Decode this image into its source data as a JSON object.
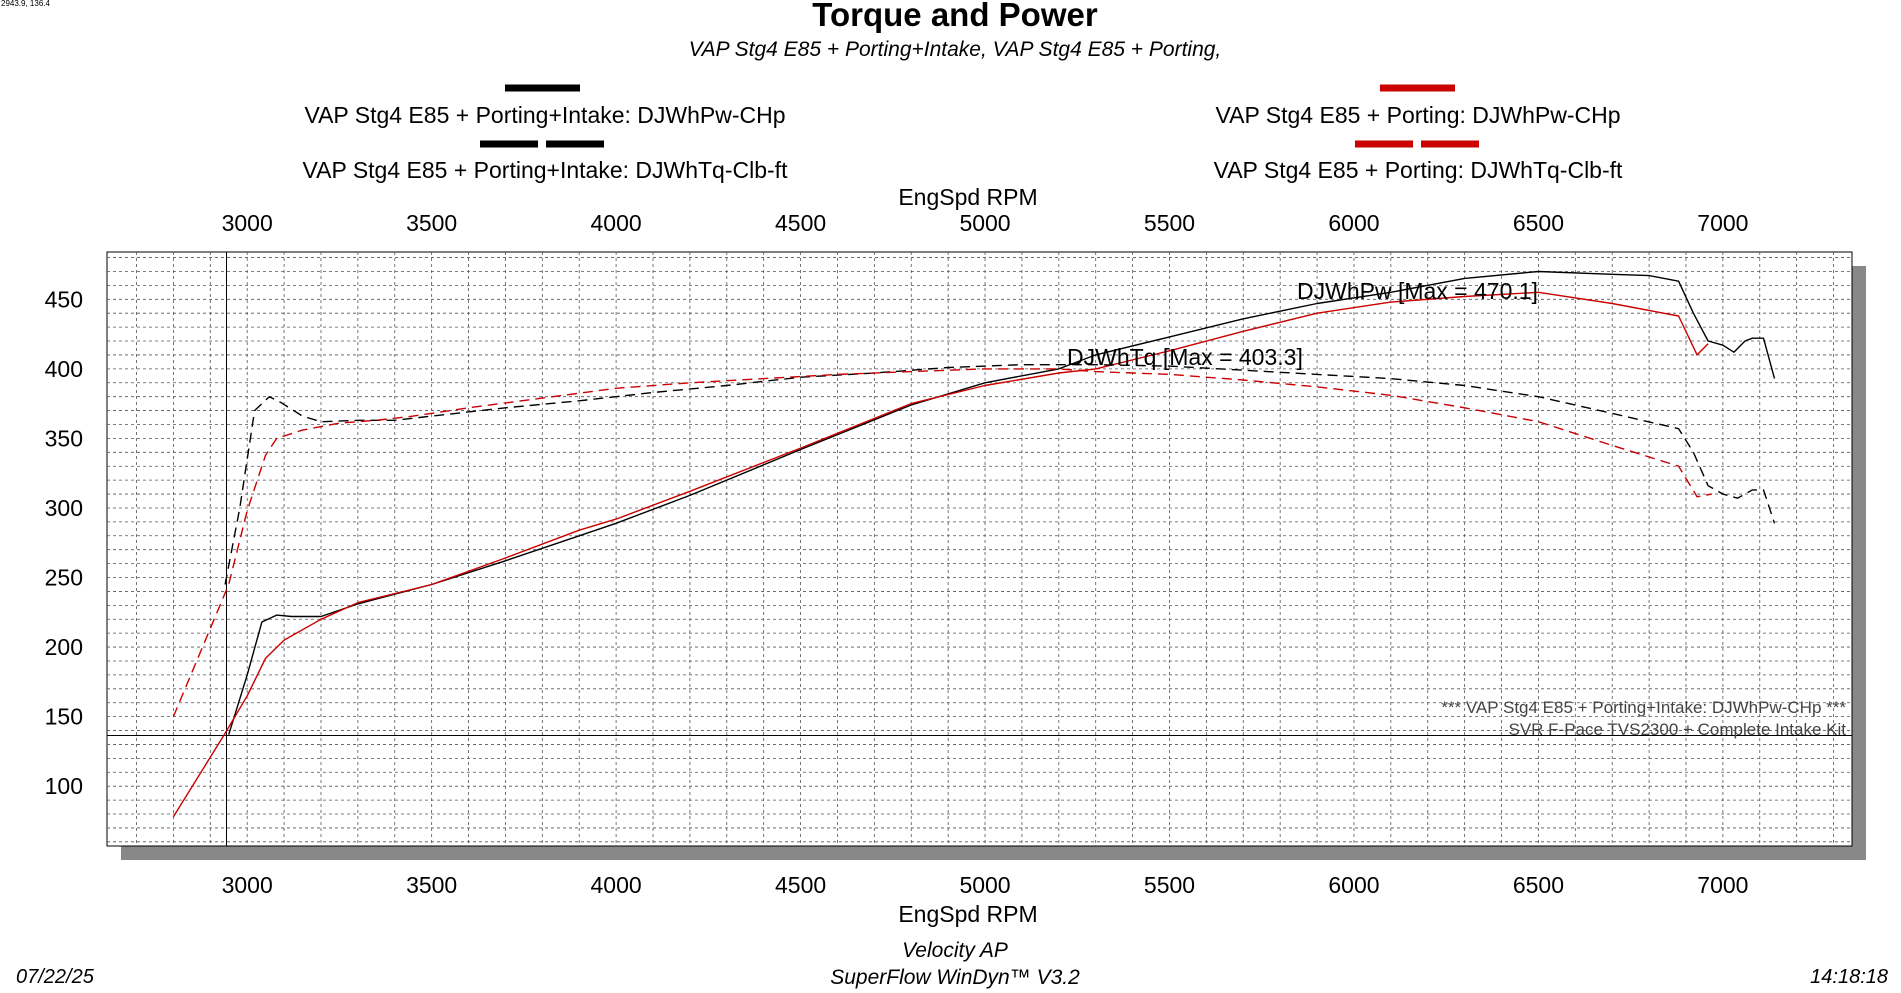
{
  "cursor_readout": "2943.9, 136.4",
  "chart_data": {
    "type": "line",
    "title": "Torque and Power",
    "subtitle": "VAP Stg4 E85 + Porting+Intake, VAP Stg4 E85 + Porting,",
    "xlabel": "EngSpd RPM",
    "ylabel": "",
    "xlim": [
      2620,
      7350
    ],
    "ylim": [
      57,
      484
    ],
    "xticks": [
      3000,
      3500,
      4000,
      4500,
      5000,
      5500,
      6000,
      6500,
      7000
    ],
    "yticks": [
      100,
      150,
      200,
      250,
      300,
      350,
      400,
      450
    ],
    "grid": true,
    "legend_placement": "top",
    "legend": [
      {
        "label": "VAP Stg4 E85 + Porting+Intake: DJWhPw-CHp",
        "color": "#000000",
        "style": "solid"
      },
      {
        "label": "VAP Stg4 E85 + Porting+Intake: DJWhTq-Clb-ft",
        "color": "#000000",
        "style": "dashed"
      },
      {
        "label": "VAP Stg4 E85 + Porting: DJWhPw-CHp",
        "color": "#cc0000",
        "style": "solid"
      },
      {
        "label": "VAP Stg4 E85 + Porting: DJWhTq-Clb-ft",
        "color": "#cc0000",
        "style": "dashed"
      }
    ],
    "annotations": {
      "power_max": "DJWhPw [Max = 470.1]",
      "torque_max": "DJWhTq [Max = 403.3]",
      "note_line1": "*** VAP Stg4 E85 + Porting+Intake: DJWhPw-CHp   ***",
      "note_line2": "SVR F-Pace TVS2300 + Complete Intake Kit"
    },
    "cursor": {
      "x": 2943.9,
      "y": 136.4
    },
    "series": [
      {
        "name": "VAP Stg4 E85 + Porting+Intake: DJWhPw-CHp",
        "color": "#000000",
        "dash": false,
        "x": [
          2950,
          3000,
          3040,
          3080,
          3120,
          3200,
          3300,
          3500,
          3700,
          3900,
          4000,
          4200,
          4500,
          4800,
          5000,
          5200,
          5300,
          5500,
          5700,
          5900,
          6100,
          6300,
          6500,
          6700,
          6800,
          6880,
          6920,
          6960,
          7000,
          7030,
          7060,
          7080,
          7110,
          7140
        ],
        "y": [
          137,
          180,
          218,
          223,
          222,
          222,
          231,
          245,
          262,
          280,
          289,
          309,
          342,
          374,
          390,
          400,
          410,
          423,
          436,
          447,
          455,
          465,
          470,
          468,
          467,
          463,
          440,
          420,
          417,
          412,
          420,
          422,
          422,
          393
        ]
      },
      {
        "name": "VAP Stg4 E85 + Porting: DJWhPw-CHp",
        "color": "#cc0000",
        "dash": false,
        "x": [
          2800,
          2940,
          3000,
          3050,
          3100,
          3200,
          3300,
          3500,
          3700,
          3900,
          4000,
          4200,
          4500,
          4800,
          5000,
          5200,
          5300,
          5500,
          5700,
          5900,
          6100,
          6300,
          6500,
          6700,
          6880,
          6930,
          6960
        ],
        "y": [
          78,
          138,
          165,
          192,
          205,
          220,
          232,
          245,
          264,
          284,
          292,
          312,
          343,
          375,
          388,
          397,
          400,
          413,
          427,
          440,
          448,
          452,
          455,
          447,
          438,
          410,
          418
        ]
      },
      {
        "name": "VAP Stg4 E85 + Porting+Intake: DJWhTq-Clb-ft",
        "color": "#000000",
        "dash": true,
        "x": [
          2940,
          2980,
          3020,
          3060,
          3090,
          3150,
          3200,
          3300,
          3400,
          3500,
          3700,
          3900,
          4100,
          4300,
          4500,
          4700,
          4900,
          5100,
          5200,
          5300,
          5500,
          5700,
          5900,
          6100,
          6300,
          6500,
          6700,
          6880,
          6920,
          6960,
          7000,
          7040,
          7080,
          7110,
          7140
        ],
        "y": [
          245,
          300,
          370,
          380,
          376,
          366,
          362,
          363,
          363,
          366,
          372,
          377,
          383,
          388,
          394,
          397,
          401,
          403,
          403,
          403,
          402,
          399,
          396,
          393,
          388,
          380,
          368,
          357,
          340,
          316,
          310,
          307,
          313,
          313,
          289
        ]
      },
      {
        "name": "VAP Stg4 E85 + Porting: DJWhTq-Clb-ft",
        "color": "#cc0000",
        "dash": true,
        "x": [
          2800,
          2950,
          3000,
          3050,
          3080,
          3150,
          3250,
          3350,
          3450,
          3600,
          3800,
          4000,
          4200,
          4400,
          4600,
          4800,
          5000,
          5200,
          5300,
          5500,
          5700,
          5900,
          6100,
          6300,
          6500,
          6700,
          6880,
          6930,
          6970
        ],
        "y": [
          150,
          245,
          298,
          338,
          350,
          356,
          361,
          363,
          366,
          372,
          379,
          386,
          390,
          393,
          396,
          398,
          400,
          400,
          398,
          396,
          392,
          387,
          381,
          372,
          362,
          345,
          330,
          308,
          310
        ]
      }
    ]
  },
  "footer": {
    "date": "07/22/25",
    "company": "Velocity AP",
    "software": "SuperFlow WinDyn™ V3.2",
    "time": "14:18:18"
  }
}
